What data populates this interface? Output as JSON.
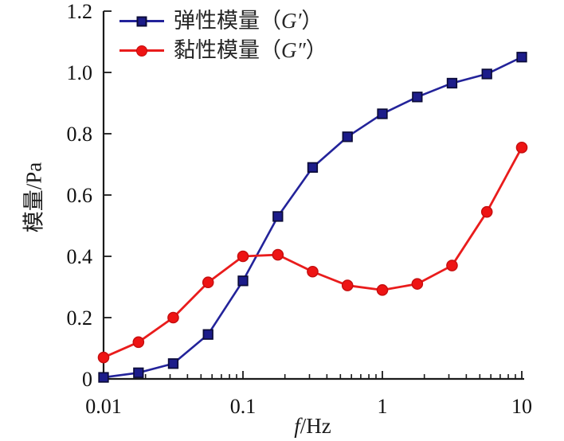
{
  "chart_data": {
    "type": "line",
    "title": "",
    "xlabel": "f/Hz",
    "xlabel_italic": "f",
    "xlabel_rest": "/Hz",
    "ylabel": "模量/Pa",
    "x_scale": "log",
    "xlim": [
      0.01,
      10
    ],
    "ylim": [
      0,
      1.2
    ],
    "grid": false,
    "legend_position": "top-left-inside",
    "x_major_ticks": [
      0.01,
      0.1,
      1,
      10
    ],
    "x_major_tick_labels": [
      "0.01",
      "0.1",
      "1",
      "10"
    ],
    "y_ticks": [
      0,
      0.2,
      0.4,
      0.6,
      0.8,
      1.0,
      1.2
    ],
    "y_tick_labels": [
      "0",
      "0.2",
      "0.4",
      "0.6",
      "0.8",
      "1.0",
      "1.2"
    ],
    "x": [
      0.01,
      0.0178,
      0.0316,
      0.0562,
      0.1,
      0.178,
      0.316,
      0.562,
      1,
      1.78,
      3.16,
      5.62,
      10
    ],
    "series": [
      {
        "name": "弹性模量（G′）",
        "label_prefix": "弹性模量（",
        "label_symbol": "G′",
        "label_suffix": "）",
        "marker": "square",
        "line_color": "#23239a",
        "marker_fill": "#1c1c8a",
        "marker_edge": "#0b0b38",
        "values": [
          0.005,
          0.02,
          0.05,
          0.145,
          0.32,
          0.53,
          0.69,
          0.79,
          0.865,
          0.92,
          0.965,
          0.995,
          1.05
        ]
      },
      {
        "name": "黏性模量（G″）",
        "label_prefix": "黏性模量（",
        "label_symbol": "G″",
        "label_suffix": "）",
        "marker": "circle",
        "line_color": "#e91c1c",
        "marker_fill": "#ee1414",
        "marker_edge": "#c40e0e",
        "values": [
          0.07,
          0.12,
          0.2,
          0.315,
          0.4,
          0.405,
          0.35,
          0.305,
          0.29,
          0.31,
          0.37,
          0.545,
          0.755
        ]
      }
    ],
    "axis_color": "#1a1a1a"
  }
}
